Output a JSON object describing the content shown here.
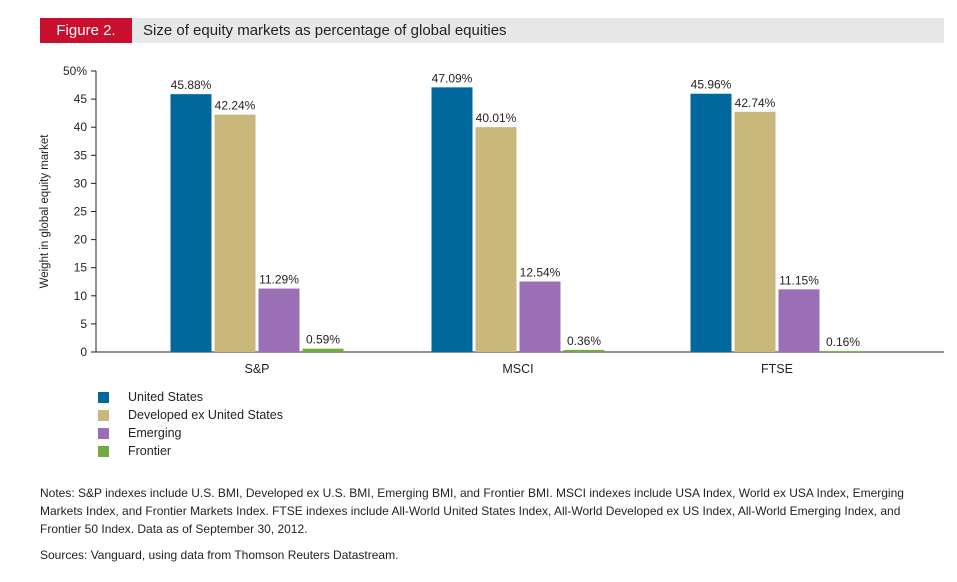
{
  "figure": {
    "label": "Figure 2.",
    "title": "Size of equity markets as percentage of global equities"
  },
  "chart_data": {
    "type": "bar",
    "categories": [
      "S&P",
      "MSCI",
      "FTSE"
    ],
    "series": [
      {
        "name": "United States",
        "color": "#00689d",
        "values": [
          45.88,
          47.09,
          45.96
        ],
        "labels": [
          "45.88%",
          "47.09%",
          "45.96%"
        ]
      },
      {
        "name": "Developed ex United States",
        "color": "#c9b77b",
        "values": [
          42.24,
          40.01,
          42.74
        ],
        "labels": [
          "42.24%",
          "40.01%",
          "42.74%"
        ]
      },
      {
        "name": "Emerging",
        "color": "#9b6fb5",
        "values": [
          11.29,
          12.54,
          11.15
        ],
        "labels": [
          "11.29%",
          "12.54%",
          "11.15%"
        ]
      },
      {
        "name": "Frontier",
        "color": "#6fab3f",
        "values": [
          0.59,
          0.36,
          0.16
        ],
        "labels": [
          "0.59%",
          "0.36%",
          "0.16%"
        ]
      }
    ],
    "ylabel": "Weight in global equity market",
    "ylim": [
      0,
      50
    ],
    "yticks": [
      0,
      5,
      10,
      15,
      20,
      25,
      30,
      35,
      40,
      45,
      50
    ],
    "ytick_labels": [
      "0",
      "5",
      "10",
      "15",
      "20",
      "25",
      "30",
      "35",
      "40",
      "45",
      "50%"
    ],
    "legend_position": "bottom-left",
    "grid": false
  },
  "notes": "Notes: S&P indexes include U.S. BMI, Developed ex U.S. BMI, Emerging BMI, and Frontier BMI. MSCI indexes include USA Index, World ex USA Index, Emerging Markets Index, and Frontier Markets Index. FTSE indexes include All-World United States Index, All-World Developed ex US Index, All-World Emerging Index, and Frontier 50 Index. Data as of September 30, 2012.",
  "sources": "Sources: Vanguard, using data from Thomson Reuters Datastream."
}
